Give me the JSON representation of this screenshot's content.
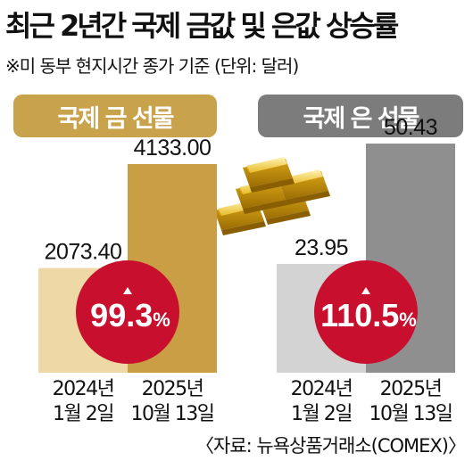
{
  "title": "최근 2년간 국제 금값 및 은값 상승률",
  "subtitle": "※미 동부 현지시간 종가 기준  (단위: 달러)",
  "source": "〈자료: 뉴욕상품거래소(COMEX)〉",
  "icons": {
    "gold-bars": "gold-bars-icon",
    "up-arrow": "triangle-up-icon"
  },
  "colors": {
    "gold_title": "#c9a24c",
    "silver_title": "#7c7c7c",
    "gold_2024": "#eed9a6",
    "gold_2025": "#c99e45",
    "silver_2024": "#d3d3d3",
    "silver_2025": "#8f8f8f",
    "badge": "#c8102e"
  },
  "chart_data": [
    {
      "type": "bar",
      "title": "국제 금 선물",
      "categories": [
        "2024년\n1월 2일",
        "2025년\n10월 13일"
      ],
      "values": [
        2073.4,
        4133.0
      ],
      "value_labels": [
        "2073.40",
        "4133.00"
      ],
      "change": "99.3",
      "change_unit": "%"
    },
    {
      "type": "bar",
      "title": "국제 은 선물",
      "categories": [
        "2024년\n1월 2일",
        "2025년\n10월 13일"
      ],
      "values": [
        23.95,
        50.43
      ],
      "value_labels": [
        "23.95",
        "50.43"
      ],
      "change": "110.5",
      "change_unit": "%"
    }
  ]
}
